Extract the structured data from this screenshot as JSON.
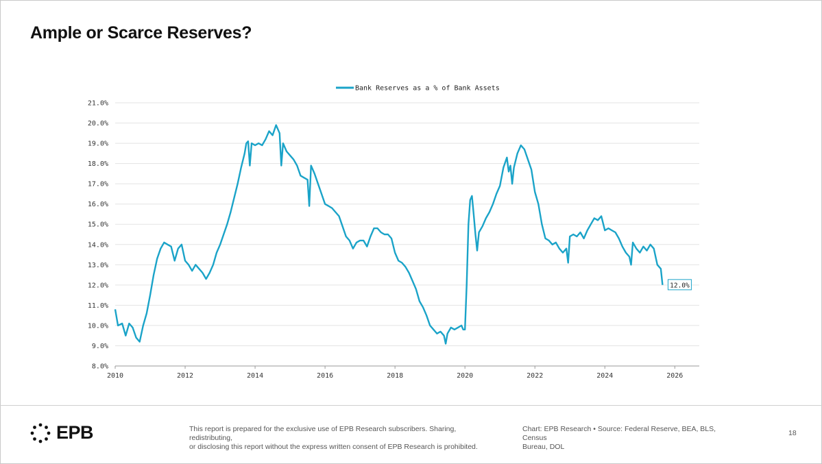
{
  "page": {
    "title": "Ample or Scarce Reserves?",
    "page_number": "18"
  },
  "footer": {
    "logo_text": "EPB",
    "disclaimer_line1": "This report is prepared for the exclusive use of EPB Research subscribers. Sharing, redistributing,",
    "disclaimer_line2": "or disclosing this report without the express written consent of EPB Research is prohibited.",
    "credit_line1": "Chart: EPB Research  •  Source: Federal Reserve, BEA, BLS, Census",
    "credit_line2": "Bureau, DOL"
  },
  "chart_data": {
    "type": "line",
    "title": "",
    "xlabel": "",
    "ylabel": "",
    "xlim": [
      2010,
      2026.7
    ],
    "ylim": [
      8.0,
      21.0
    ],
    "x_ticks": [
      "2010",
      "2012",
      "2014",
      "2016",
      "2018",
      "2020",
      "2022",
      "2024",
      "2026"
    ],
    "y_ticks": [
      "8.0%",
      "9.0%",
      "10.0%",
      "11.0%",
      "12.0%",
      "13.0%",
      "14.0%",
      "15.0%",
      "16.0%",
      "17.0%",
      "18.0%",
      "19.0%",
      "20.0%",
      "21.0%"
    ],
    "grid": "horizontal",
    "legend_position": "top-center",
    "end_label": "12.0%",
    "series": [
      {
        "name": "Bank Reserves as a % of Bank Assets",
        "color": "#1aa3c8",
        "points": [
          [
            2010.0,
            10.8
          ],
          [
            2010.08,
            10.0
          ],
          [
            2010.2,
            10.1
          ],
          [
            2010.3,
            9.5
          ],
          [
            2010.4,
            10.1
          ],
          [
            2010.5,
            9.9
          ],
          [
            2010.6,
            9.4
          ],
          [
            2010.7,
            9.2
          ],
          [
            2010.8,
            10.0
          ],
          [
            2010.9,
            10.6
          ],
          [
            2011.0,
            11.5
          ],
          [
            2011.1,
            12.5
          ],
          [
            2011.2,
            13.3
          ],
          [
            2011.3,
            13.8
          ],
          [
            2011.4,
            14.1
          ],
          [
            2011.5,
            14.0
          ],
          [
            2011.6,
            13.9
          ],
          [
            2011.7,
            13.2
          ],
          [
            2011.8,
            13.8
          ],
          [
            2011.9,
            14.0
          ],
          [
            2012.0,
            13.2
          ],
          [
            2012.1,
            13.0
          ],
          [
            2012.2,
            12.7
          ],
          [
            2012.3,
            13.0
          ],
          [
            2012.4,
            12.8
          ],
          [
            2012.5,
            12.6
          ],
          [
            2012.6,
            12.3
          ],
          [
            2012.7,
            12.6
          ],
          [
            2012.8,
            13.0
          ],
          [
            2012.9,
            13.6
          ],
          [
            2013.0,
            14.0
          ],
          [
            2013.1,
            14.5
          ],
          [
            2013.2,
            15.0
          ],
          [
            2013.3,
            15.6
          ],
          [
            2013.4,
            16.3
          ],
          [
            2013.5,
            17.0
          ],
          [
            2013.6,
            17.8
          ],
          [
            2013.7,
            18.5
          ],
          [
            2013.75,
            19.0
          ],
          [
            2013.8,
            19.1
          ],
          [
            2013.85,
            17.9
          ],
          [
            2013.9,
            19.0
          ],
          [
            2014.0,
            18.9
          ],
          [
            2014.1,
            19.0
          ],
          [
            2014.2,
            18.9
          ],
          [
            2014.3,
            19.2
          ],
          [
            2014.4,
            19.6
          ],
          [
            2014.5,
            19.4
          ],
          [
            2014.6,
            19.9
          ],
          [
            2014.7,
            19.5
          ],
          [
            2014.75,
            17.9
          ],
          [
            2014.8,
            19.0
          ],
          [
            2014.9,
            18.6
          ],
          [
            2015.0,
            18.4
          ],
          [
            2015.1,
            18.2
          ],
          [
            2015.2,
            17.9
          ],
          [
            2015.3,
            17.4
          ],
          [
            2015.4,
            17.3
          ],
          [
            2015.5,
            17.2
          ],
          [
            2015.55,
            15.9
          ],
          [
            2015.6,
            17.9
          ],
          [
            2015.7,
            17.5
          ],
          [
            2015.8,
            17.0
          ],
          [
            2015.9,
            16.5
          ],
          [
            2016.0,
            16.0
          ],
          [
            2016.1,
            15.9
          ],
          [
            2016.2,
            15.8
          ],
          [
            2016.3,
            15.6
          ],
          [
            2016.4,
            15.4
          ],
          [
            2016.5,
            14.9
          ],
          [
            2016.6,
            14.4
          ],
          [
            2016.7,
            14.2
          ],
          [
            2016.8,
            13.8
          ],
          [
            2016.9,
            14.1
          ],
          [
            2017.0,
            14.2
          ],
          [
            2017.1,
            14.2
          ],
          [
            2017.2,
            13.9
          ],
          [
            2017.3,
            14.4
          ],
          [
            2017.4,
            14.8
          ],
          [
            2017.5,
            14.8
          ],
          [
            2017.6,
            14.6
          ],
          [
            2017.7,
            14.5
          ],
          [
            2017.8,
            14.5
          ],
          [
            2017.9,
            14.3
          ],
          [
            2018.0,
            13.6
          ],
          [
            2018.1,
            13.2
          ],
          [
            2018.2,
            13.1
          ],
          [
            2018.3,
            12.9
          ],
          [
            2018.4,
            12.6
          ],
          [
            2018.5,
            12.2
          ],
          [
            2018.6,
            11.8
          ],
          [
            2018.7,
            11.2
          ],
          [
            2018.8,
            10.9
          ],
          [
            2018.9,
            10.5
          ],
          [
            2019.0,
            10.0
          ],
          [
            2019.1,
            9.8
          ],
          [
            2019.2,
            9.6
          ],
          [
            2019.3,
            9.7
          ],
          [
            2019.4,
            9.5
          ],
          [
            2019.45,
            9.1
          ],
          [
            2019.5,
            9.6
          ],
          [
            2019.6,
            9.9
          ],
          [
            2019.7,
            9.8
          ],
          [
            2019.8,
            9.9
          ],
          [
            2019.9,
            10.0
          ],
          [
            2019.95,
            9.8
          ],
          [
            2020.0,
            9.8
          ],
          [
            2020.05,
            12.0
          ],
          [
            2020.1,
            15.0
          ],
          [
            2020.15,
            16.2
          ],
          [
            2020.2,
            16.4
          ],
          [
            2020.25,
            15.5
          ],
          [
            2020.3,
            14.5
          ],
          [
            2020.35,
            13.7
          ],
          [
            2020.4,
            14.6
          ],
          [
            2020.5,
            14.9
          ],
          [
            2020.6,
            15.3
          ],
          [
            2020.7,
            15.6
          ],
          [
            2020.8,
            16.0
          ],
          [
            2020.9,
            16.5
          ],
          [
            2021.0,
            16.9
          ],
          [
            2021.1,
            17.8
          ],
          [
            2021.2,
            18.3
          ],
          [
            2021.25,
            17.6
          ],
          [
            2021.3,
            17.9
          ],
          [
            2021.35,
            17.0
          ],
          [
            2021.4,
            17.8
          ],
          [
            2021.5,
            18.5
          ],
          [
            2021.6,
            18.9
          ],
          [
            2021.7,
            18.7
          ],
          [
            2021.8,
            18.2
          ],
          [
            2021.9,
            17.7
          ],
          [
            2022.0,
            16.6
          ],
          [
            2022.1,
            16.0
          ],
          [
            2022.2,
            15.0
          ],
          [
            2022.3,
            14.3
          ],
          [
            2022.4,
            14.2
          ],
          [
            2022.5,
            14.0
          ],
          [
            2022.6,
            14.1
          ],
          [
            2022.7,
            13.8
          ],
          [
            2022.8,
            13.6
          ],
          [
            2022.9,
            13.8
          ],
          [
            2022.95,
            13.1
          ],
          [
            2023.0,
            14.4
          ],
          [
            2023.1,
            14.5
          ],
          [
            2023.2,
            14.4
          ],
          [
            2023.3,
            14.6
          ],
          [
            2023.4,
            14.3
          ],
          [
            2023.5,
            14.7
          ],
          [
            2023.6,
            15.0
          ],
          [
            2023.7,
            15.3
          ],
          [
            2023.8,
            15.2
          ],
          [
            2023.9,
            15.4
          ],
          [
            2024.0,
            14.7
          ],
          [
            2024.1,
            14.8
          ],
          [
            2024.2,
            14.7
          ],
          [
            2024.3,
            14.6
          ],
          [
            2024.4,
            14.3
          ],
          [
            2024.5,
            13.9
          ],
          [
            2024.6,
            13.6
          ],
          [
            2024.7,
            13.4
          ],
          [
            2024.75,
            13.0
          ],
          [
            2024.8,
            14.1
          ],
          [
            2024.9,
            13.8
          ],
          [
            2025.0,
            13.6
          ],
          [
            2025.1,
            13.9
          ],
          [
            2025.2,
            13.7
          ],
          [
            2025.3,
            14.0
          ],
          [
            2025.4,
            13.8
          ],
          [
            2025.5,
            13.0
          ],
          [
            2025.6,
            12.8
          ],
          [
            2025.65,
            12.0
          ]
        ]
      }
    ]
  }
}
